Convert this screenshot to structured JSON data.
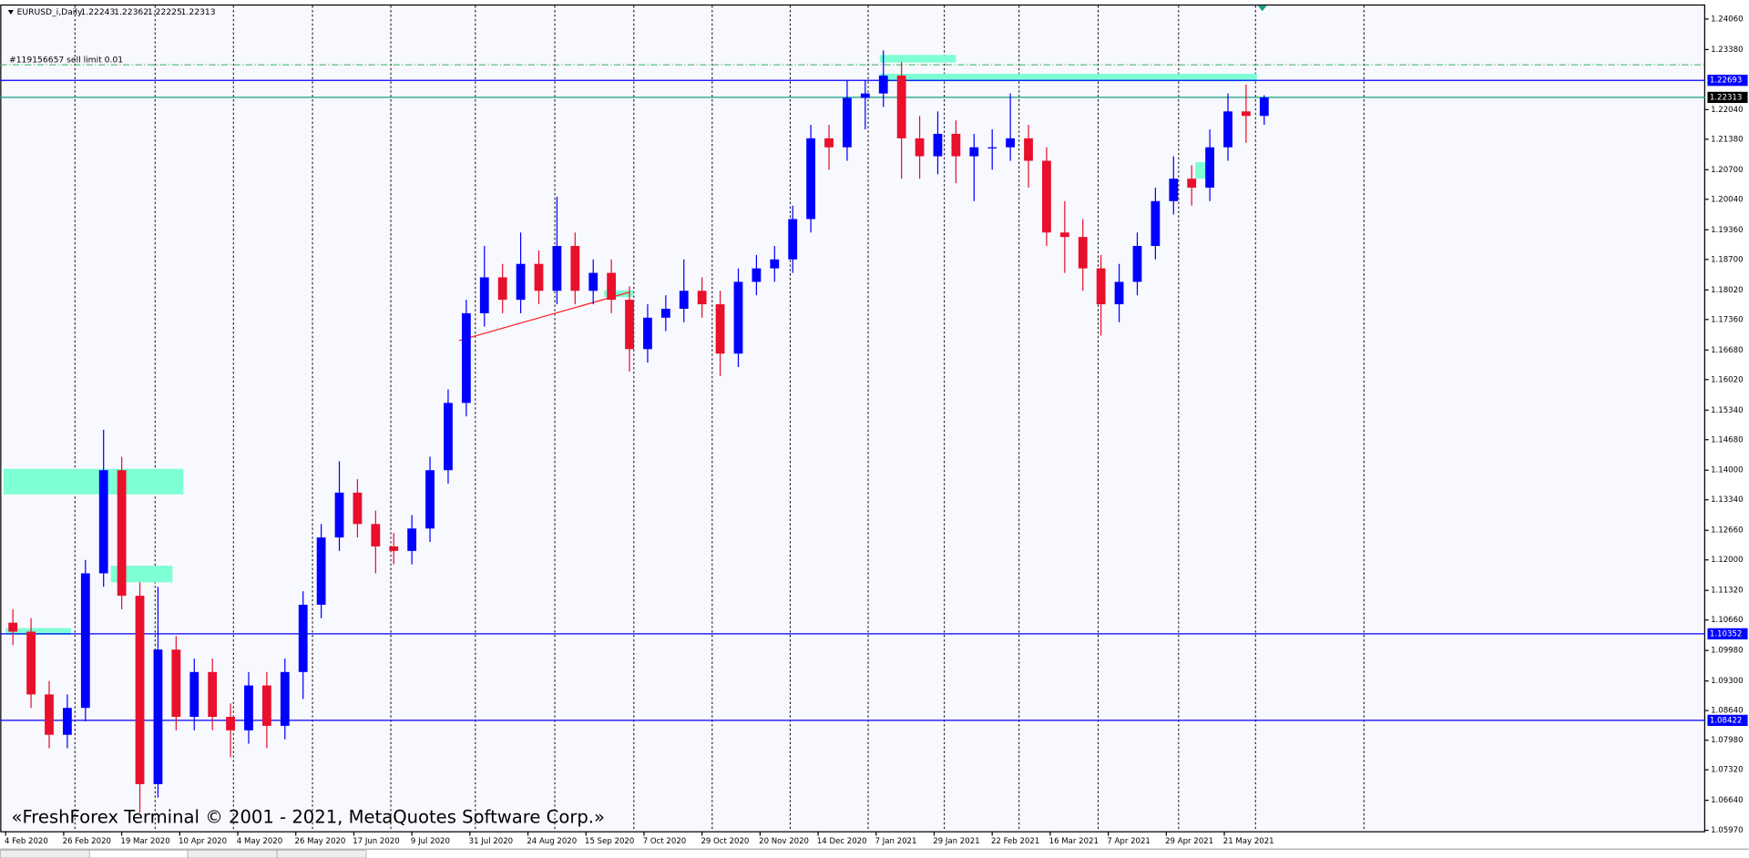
{
  "chart_data": {
    "type": "candlestick",
    "info": {
      "symbol": "EURUSD_i,Daily",
      "ohlc": [
        1.22243,
        1.22362,
        1.22225,
        1.22313
      ]
    },
    "order_label": "#119156657 sell limit 0.01",
    "watermark": "«FreshForex Terminal © 2001 - 2021, MetaQuotes Software Corp.»",
    "up_color": "#0000ff",
    "down_color": "#e8102c",
    "x": [
      2,
      7,
      12,
      17,
      22,
      27,
      32,
      37,
      42,
      47,
      52,
      57,
      62,
      67,
      72,
      77,
      82,
      87,
      92,
      97,
      102,
      107,
      112,
      117,
      122,
      127,
      132,
      137,
      142,
      147,
      152,
      157,
      162,
      167,
      172,
      177,
      182,
      187,
      192,
      197,
      202,
      207,
      212,
      217,
      222,
      227,
      232,
      237,
      242,
      247,
      252,
      257,
      262,
      267,
      272,
      277,
      282,
      287,
      292,
      297,
      302,
      307,
      312,
      317,
      322,
      327,
      332,
      337,
      342,
      347
    ],
    "open": [
      1.106,
      1.104,
      1.09,
      1.081,
      1.087,
      1.117,
      1.14,
      1.112,
      1.07,
      1.1,
      1.085,
      1.095,
      1.085,
      1.082,
      1.092,
      1.083,
      1.095,
      1.11,
      1.125,
      1.135,
      1.128,
      1.123,
      1.122,
      1.127,
      1.14,
      1.155,
      1.175,
      1.183,
      1.178,
      1.186,
      1.18,
      1.19,
      1.18,
      1.184,
      1.178,
      1.167,
      1.174,
      1.176,
      1.18,
      1.177,
      1.166,
      1.182,
      1.185,
      1.187,
      1.196,
      1.214,
      1.212,
      1.223,
      1.224,
      1.228,
      1.214,
      1.21,
      1.215,
      1.21,
      1.212,
      1.212,
      1.214,
      1.209,
      1.193,
      1.192,
      1.185,
      1.177,
      1.182,
      1.19,
      1.2,
      1.205,
      1.203,
      1.212,
      1.22,
      1.219
    ],
    "high": [
      1.109,
      1.107,
      1.093,
      1.09,
      1.12,
      1.149,
      1.143,
      1.115,
      1.114,
      1.103,
      1.098,
      1.098,
      1.088,
      1.095,
      1.095,
      1.098,
      1.113,
      1.128,
      1.142,
      1.138,
      1.131,
      1.126,
      1.13,
      1.143,
      1.158,
      1.178,
      1.19,
      1.186,
      1.193,
      1.189,
      1.201,
      1.193,
      1.187,
      1.187,
      1.181,
      1.177,
      1.179,
      1.187,
      1.183,
      1.18,
      1.185,
      1.188,
      1.19,
      1.199,
      1.217,
      1.217,
      1.227,
      1.227,
      1.2336,
      1.231,
      1.219,
      1.22,
      1.218,
      1.215,
      1.216,
      1.224,
      1.217,
      1.212,
      1.2,
      1.196,
      1.188,
      1.186,
      1.193,
      1.203,
      1.21,
      1.208,
      1.216,
      1.224,
      1.226,
      1.2236
    ],
    "low": [
      1.101,
      1.087,
      1.078,
      1.078,
      1.084,
      1.114,
      1.109,
      1.0636,
      1.067,
      1.082,
      1.082,
      1.082,
      1.076,
      1.079,
      1.078,
      1.08,
      1.089,
      1.107,
      1.122,
      1.125,
      1.117,
      1.119,
      1.119,
      1.124,
      1.137,
      1.152,
      1.172,
      1.175,
      1.175,
      1.177,
      1.177,
      1.177,
      1.177,
      1.175,
      1.162,
      1.164,
      1.171,
      1.173,
      1.174,
      1.161,
      1.163,
      1.179,
      1.182,
      1.184,
      1.193,
      1.207,
      1.209,
      1.216,
      1.221,
      1.205,
      1.205,
      1.206,
      1.204,
      1.2,
      1.207,
      1.209,
      1.203,
      1.19,
      1.184,
      1.18,
      1.17,
      1.173,
      1.179,
      1.187,
      1.197,
      1.199,
      1.2,
      1.209,
      1.213,
      1.217
    ],
    "close": [
      1.104,
      1.09,
      1.081,
      1.087,
      1.117,
      1.14,
      1.112,
      1.07,
      1.1,
      1.085,
      1.095,
      1.085,
      1.082,
      1.092,
      1.083,
      1.095,
      1.11,
      1.125,
      1.135,
      1.128,
      1.123,
      1.122,
      1.127,
      1.14,
      1.155,
      1.175,
      1.183,
      1.178,
      1.186,
      1.18,
      1.19,
      1.18,
      1.184,
      1.178,
      1.167,
      1.174,
      1.176,
      1.18,
      1.177,
      1.166,
      1.182,
      1.185,
      1.187,
      1.196,
      1.214,
      1.212,
      1.223,
      1.224,
      1.228,
      1.214,
      1.21,
      1.215,
      1.21,
      1.212,
      1.212,
      1.214,
      1.209,
      1.193,
      1.192,
      1.185,
      1.177,
      1.182,
      1.19,
      1.2,
      1.205,
      1.203,
      1.212,
      1.22,
      1.219,
      1.2231
    ],
    "xlim": [
      -1.5,
      468.6
    ],
    "xticks": [
      {
        "value": 0,
        "label": "4 Feb 2020"
      },
      {
        "value": 16,
        "label": "26 Feb 2020"
      },
      {
        "value": 32,
        "label": "19 Mar 2020"
      },
      {
        "value": 48,
        "label": "10 Apr 2020"
      },
      {
        "value": 64,
        "label": "4 May 2020"
      },
      {
        "value": 80,
        "label": "26 May 2020"
      },
      {
        "value": 96,
        "label": "17 Jun 2020"
      },
      {
        "value": 112,
        "label": "9 Jul 2020"
      },
      {
        "value": 128,
        "label": "31 Jul 2020"
      },
      {
        "value": 144,
        "label": "24 Aug 2020"
      },
      {
        "value": 160,
        "label": "15 Sep 2020"
      },
      {
        "value": 176,
        "label": "7 Oct 2020"
      },
      {
        "value": 192,
        "label": "29 Oct 2020"
      },
      {
        "value": 208,
        "label": "20 Nov 2020"
      },
      {
        "value": 224,
        "label": "14 Dec 2020"
      },
      {
        "value": 240,
        "label": "7 Jan 2021"
      },
      {
        "value": 256,
        "label": "29 Jan 2021"
      },
      {
        "value": 272,
        "label": "22 Feb 2021"
      },
      {
        "value": 288,
        "label": "16 Mar 2021"
      },
      {
        "value": 304,
        "label": "7 Apr 2021"
      },
      {
        "value": 320,
        "label": "29 Apr 2021"
      },
      {
        "value": 336,
        "label": "21 May 2021"
      }
    ],
    "period_separators": [
      19.1,
      41.2,
      62.8,
      84.6,
      106.2,
      129.5,
      151.4,
      173.2,
      194.8,
      216.3,
      237.8,
      258.8,
      279.4,
      301.2,
      323.4,
      344.6,
      374.5
    ],
    "ylim": [
      1.0595,
      1.2436
    ],
    "yticks": [
      {
        "value": 1.2406,
        "label": "1.24060"
      },
      {
        "value": 1.2338,
        "label": "1.23380"
      },
      {
        "value": 1.2204,
        "label": "1.22040"
      },
      {
        "value": 1.2138,
        "label": "1.21380"
      },
      {
        "value": 1.207,
        "label": "1.20700"
      },
      {
        "value": 1.2004,
        "label": "1.20040"
      },
      {
        "value": 1.1936,
        "label": "1.19360"
      },
      {
        "value": 1.187,
        "label": "1.18700"
      },
      {
        "value": 1.1802,
        "label": "1.18020"
      },
      {
        "value": 1.1736,
        "label": "1.17360"
      },
      {
        "value": 1.1668,
        "label": "1.16680"
      },
      {
        "value": 1.1602,
        "label": "1.16020"
      },
      {
        "value": 1.1534,
        "label": "1.15340"
      },
      {
        "value": 1.1468,
        "label": "1.14680"
      },
      {
        "value": 1.14,
        "label": "1.14000"
      },
      {
        "value": 1.1334,
        "label": "1.13340"
      },
      {
        "value": 1.1266,
        "label": "1.12660"
      },
      {
        "value": 1.12,
        "label": "1.12000"
      },
      {
        "value": 1.1132,
        "label": "1.11320"
      },
      {
        "value": 1.1066,
        "label": "1.10660"
      },
      {
        "value": 1.0998,
        "label": "1.09980"
      },
      {
        "value": 1.093,
        "label": "1.09300"
      },
      {
        "value": 1.0864,
        "label": "1.08640"
      },
      {
        "value": 1.0798,
        "label": "1.07980"
      },
      {
        "value": 1.0732,
        "label": "1.07320"
      },
      {
        "value": 1.0664,
        "label": "1.06640"
      },
      {
        "value": 1.0597,
        "label": "1.05970"
      }
    ],
    "levels": [
      {
        "value": 1.22693,
        "color": "#0000ff",
        "label_bg": "#0000ff"
      },
      {
        "value": 1.22313,
        "color": "#10a080",
        "label_bg": "#000000"
      },
      {
        "value": 1.10352,
        "color": "#0000ff",
        "label_bg": "#0000ff"
      },
      {
        "value": 1.08422,
        "color": "#0000ff",
        "label_bg": "#0000ff"
      }
    ],
    "order_level": {
      "value": 1.2304,
      "color": "#30b060"
    },
    "zone_color": "#7fffd4",
    "zones": [
      {
        "x": [
          -0.6,
          49
        ],
        "y": [
          1.1346,
          1.1403
        ]
      },
      {
        "x": [
          29,
          46
        ],
        "y": [
          1.115,
          1.1187
        ]
      },
      {
        "x": [
          0,
          18
        ],
        "y": [
          1.1033,
          1.1048
        ]
      },
      {
        "x": [
          165,
          173
        ],
        "y": [
          1.1786,
          1.1801
        ]
      },
      {
        "x": [
          241,
          262
        ],
        "y": [
          1.2309,
          1.2326
        ]
      },
      {
        "x": [
          241,
          345
        ],
        "y": [
          1.2267,
          1.2284
        ]
      },
      {
        "x": [
          328,
          332
        ],
        "y": [
          1.205,
          1.2087
        ]
      }
    ],
    "trendline": {
      "x": [
        125,
        172
      ],
      "y": [
        1.1689,
        1.1797
      ],
      "color": "#ff2020"
    }
  }
}
